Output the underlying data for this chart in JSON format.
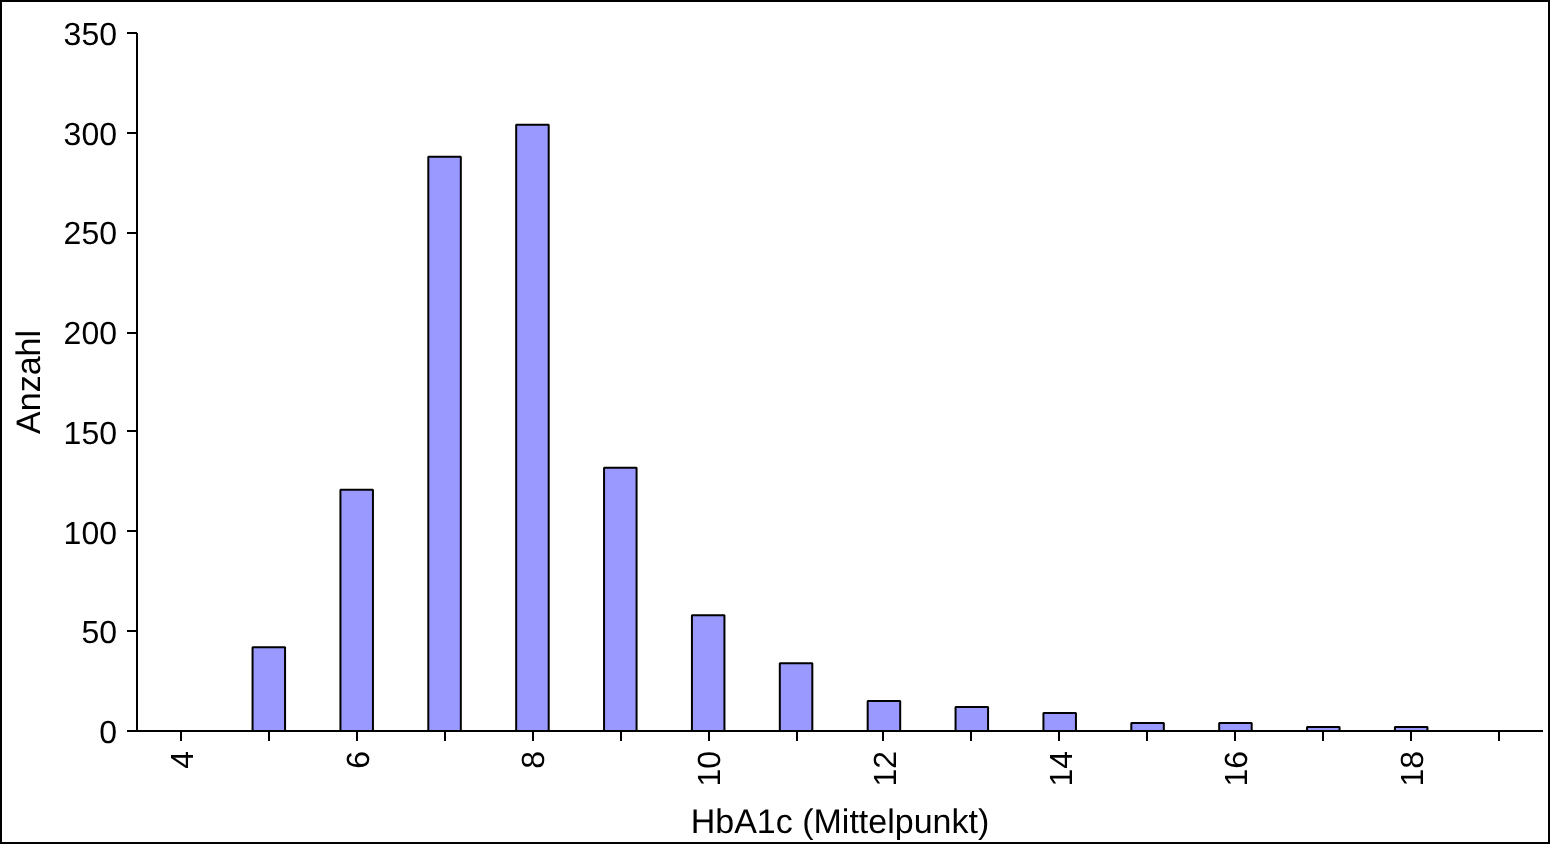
{
  "chart_data": {
    "type": "bar",
    "xlabel": "HbA1c (Mittelpunkt)",
    "ylabel": "Anzahl",
    "categories": [
      "4",
      null,
      "6",
      null,
      "8",
      null,
      "10",
      null,
      "12",
      null,
      "14",
      null,
      "16",
      null,
      "18",
      null
    ],
    "values": [
      null,
      42,
      121,
      288,
      304,
      132,
      58,
      34,
      15,
      12,
      9,
      4,
      4,
      2,
      2,
      null
    ],
    "color": "#9999ff",
    "ylim": [
      0,
      350
    ],
    "yticks": [
      0,
      50,
      100,
      150,
      200,
      250,
      300,
      350
    ],
    "grid": false
  }
}
